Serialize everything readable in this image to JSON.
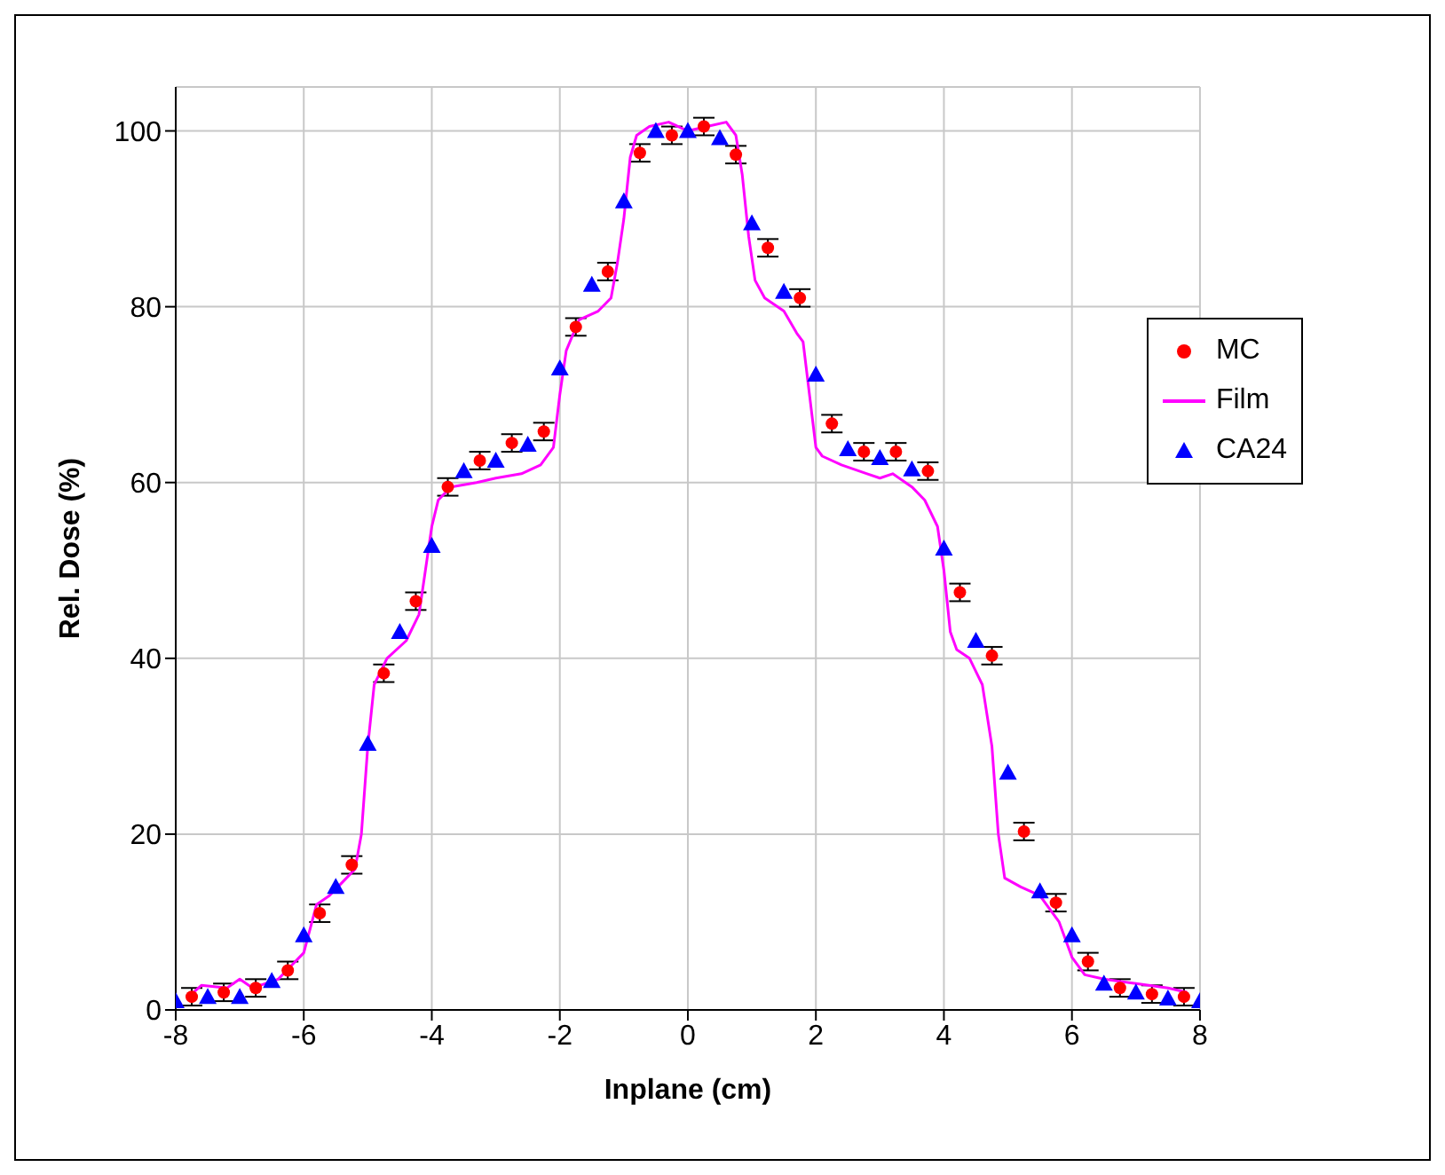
{
  "chart_data": {
    "type": "scatter",
    "xlabel": "Inplane (cm)",
    "ylabel": "Rel. Dose (%)",
    "xlim": [
      -8,
      8
    ],
    "xticks": [
      -8,
      -6,
      -4,
      -2,
      0,
      2,
      4,
      6,
      8
    ],
    "ylim": [
      0,
      105
    ],
    "yticks": [
      0,
      20,
      40,
      60,
      80,
      100
    ],
    "grid": true,
    "legend": "right",
    "series": [
      {
        "name": "MC",
        "marker": "circle",
        "color": "#ff0000",
        "x": [
          -7.75,
          -7.25,
          -6.75,
          -6.25,
          -5.75,
          -5.25,
          -4.75,
          -4.25,
          -3.75,
          -3.25,
          -2.75,
          -2.25,
          -1.75,
          -1.25,
          -0.75,
          -0.25,
          0.25,
          0.75,
          1.25,
          1.75,
          2.25,
          2.75,
          3.25,
          3.75,
          4.25,
          4.75,
          5.25,
          5.75,
          6.25,
          6.75,
          7.25,
          7.75
        ],
        "values": [
          1.5,
          2,
          2.5,
          4.5,
          11,
          16.5,
          38.3,
          46.5,
          59.5,
          62.5,
          64.5,
          65.8,
          77.7,
          84,
          97.5,
          99.5,
          100.5,
          97.3,
          86.7,
          81,
          66.7,
          63.5,
          63.5,
          61.3,
          47.5,
          40.3,
          20.3,
          12.2,
          5.5,
          2.5,
          1.8,
          1.5
        ],
        "errors": [
          1,
          1,
          1,
          1,
          1,
          1,
          1,
          1,
          1,
          1,
          1,
          1,
          1,
          1,
          1,
          1,
          1,
          1,
          1,
          1,
          1,
          1,
          1,
          1,
          1,
          1,
          1,
          1,
          1,
          1,
          1,
          1
        ]
      },
      {
        "name": "Film",
        "type": "line",
        "marker": "none",
        "color": "#ff00ff",
        "x": [
          -7.8,
          -7.6,
          -7.2,
          -7,
          -6.8,
          -6.4,
          -6.2,
          -6,
          -5.8,
          -5.6,
          -5.4,
          -5.2,
          -5.1,
          -5,
          -4.9,
          -4.7,
          -4.4,
          -4.2,
          -4.1,
          -4,
          -3.9,
          -3.7,
          -3.3,
          -3,
          -2.6,
          -2.3,
          -2.1,
          -2,
          -1.9,
          -1.7,
          -1.4,
          -1.2,
          -1.1,
          -1,
          -0.9,
          -0.8,
          -0.6,
          -0.3,
          0,
          0.3,
          0.6,
          0.75,
          0.85,
          0.95,
          1.05,
          1.2,
          1.5,
          1.7,
          1.8,
          1.9,
          2,
          2.1,
          2.4,
          2.8,
          3,
          3.2,
          3.5,
          3.7,
          3.9,
          4,
          4.1,
          4.2,
          4.4,
          4.6,
          4.75,
          4.85,
          4.95,
          5.2,
          5.5,
          5.8,
          6,
          6.2,
          6.5,
          7,
          7.5,
          7.8
        ],
        "values": [
          1.5,
          2.8,
          2.5,
          3.5,
          2.5,
          3.5,
          5,
          6.5,
          12,
          13,
          14.5,
          16,
          20,
          30,
          37,
          40,
          42,
          45,
          50,
          55,
          58,
          59.5,
          60,
          60.5,
          61,
          62,
          64,
          70,
          75,
          78.5,
          79.5,
          81,
          85,
          90,
          97,
          99.5,
          100.5,
          101,
          100,
          100.5,
          101,
          99.5,
          95,
          88,
          83,
          81,
          79.5,
          77,
          76,
          70,
          64,
          63,
          62,
          61,
          60.5,
          61,
          59.5,
          58,
          55,
          50,
          43,
          41,
          40,
          37,
          30,
          20,
          15,
          14,
          13,
          10,
          6,
          4,
          3.5,
          3,
          2.5,
          2
        ]
      },
      {
        "name": "CA24",
        "marker": "triangle",
        "color": "#0000ff",
        "x": [
          -8,
          -7.5,
          -7,
          -6.5,
          -6,
          -5.5,
          -5,
          -4.5,
          -4,
          -3.5,
          -3,
          -2.5,
          -2,
          -1.5,
          -1,
          -0.5,
          0,
          0.5,
          1,
          1.5,
          2,
          2.5,
          3,
          3.5,
          4,
          4.5,
          5,
          5.5,
          6,
          6.5,
          7,
          7.5,
          8
        ],
        "values": [
          1,
          1.5,
          1.5,
          3.3,
          8.5,
          14,
          30.3,
          43,
          52.8,
          61.3,
          62.5,
          64.3,
          73,
          82.5,
          92,
          100,
          100,
          99.2,
          89.5,
          81.7,
          72.3,
          63.8,
          62.8,
          61.5,
          52.5,
          42,
          27,
          13.5,
          8.5,
          3,
          2,
          1.3,
          1
        ]
      }
    ]
  }
}
